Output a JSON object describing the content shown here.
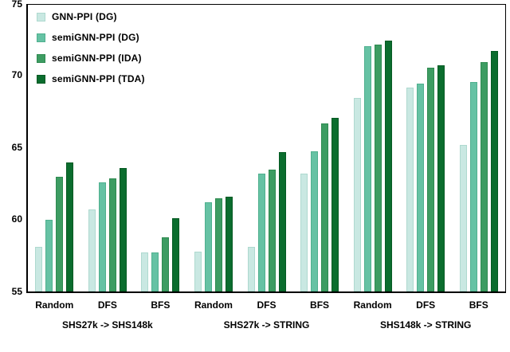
{
  "chart_data": {
    "type": "bar",
    "title": "",
    "xlabel": "",
    "ylabel": "",
    "ylim": [
      55,
      75
    ],
    "yticks": [
      75,
      70,
      65,
      60,
      55
    ],
    "grid": false,
    "legend_position": "top-left-inside",
    "categories": [
      "Random",
      "DFS",
      "BFS",
      "Random",
      "DFS",
      "BFS",
      "Random",
      "DFS",
      "BFS"
    ],
    "sections": [
      {
        "label": "SHS27k -> SHS148k",
        "groups": [
          0,
          1,
          2
        ]
      },
      {
        "label": "SHS27k -> STRING",
        "groups": [
          3,
          4,
          5
        ]
      },
      {
        "label": "SHS148k -> STRING",
        "groups": [
          6,
          7,
          8
        ]
      }
    ],
    "series": [
      {
        "key": "gnn-ppi-dg",
        "name": "GNN-PPI (DG)",
        "color": "#c9e8e2",
        "edge": "#aed9cf",
        "values": [
          58.1,
          60.7,
          57.7,
          57.8,
          58.1,
          63.2,
          68.5,
          69.2,
          65.2
        ]
      },
      {
        "key": "semignn-ppi-dg",
        "name": "semiGNN-PPI (DG)",
        "color": "#66c2a4",
        "edge": "#4fb08e",
        "values": [
          60.0,
          62.6,
          57.7,
          61.2,
          63.2,
          64.8,
          72.1,
          69.5,
          69.6
        ]
      },
      {
        "key": "semignn-ppi-ida",
        "name": "semiGNN-PPI (IDA)",
        "color": "#3d9c62",
        "edge": "#2e8a50",
        "values": [
          63.0,
          62.9,
          58.8,
          61.5,
          63.5,
          66.7,
          72.2,
          70.6,
          71.0
        ]
      },
      {
        "key": "semignn-ppi-tda",
        "name": "semiGNN-PPI (TDA)",
        "color": "#0b6d2e",
        "edge": "#055a23",
        "values": [
          64.0,
          63.6,
          60.1,
          61.6,
          64.7,
          67.1,
          72.5,
          70.8,
          71.8
        ]
      }
    ]
  }
}
